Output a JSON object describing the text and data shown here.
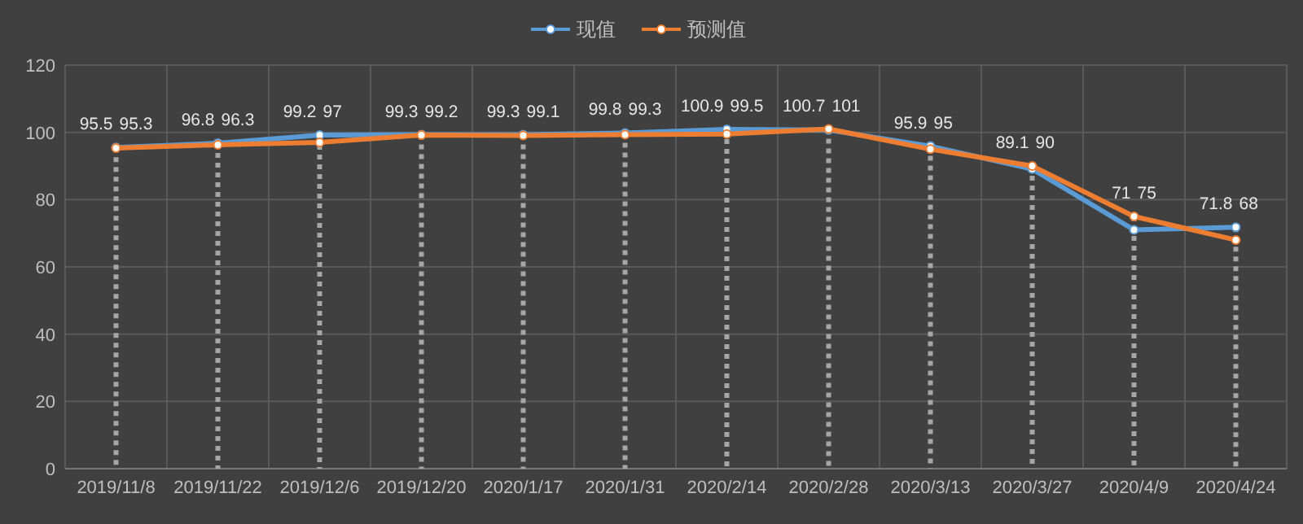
{
  "chart_data": {
    "type": "line",
    "categories": [
      "2019/11/8",
      "2019/11/22",
      "2019/12/6",
      "2019/12/20",
      "2020/1/17",
      "2020/1/31",
      "2020/2/14",
      "2020/2/28",
      "2020/3/13",
      "2020/3/27",
      "2020/4/9",
      "2020/4/24"
    ],
    "series": [
      {
        "name": "现值",
        "color": "#5b9bd5",
        "values": [
          95.5,
          96.8,
          99.2,
          99.3,
          99.3,
          99.8,
          100.9,
          100.7,
          95.9,
          89.1,
          71,
          71.8
        ]
      },
      {
        "name": "预测值",
        "color": "#ed7d31",
        "values": [
          95.3,
          96.3,
          97,
          99.2,
          99.1,
          99.3,
          99.5,
          101,
          95,
          90,
          75,
          68
        ]
      }
    ],
    "ylim": [
      0,
      120
    ],
    "yticks": [
      0,
      20,
      40,
      60,
      80,
      100,
      120
    ],
    "grid": true,
    "legend": "top",
    "marker": "circle",
    "data_labels": true
  }
}
